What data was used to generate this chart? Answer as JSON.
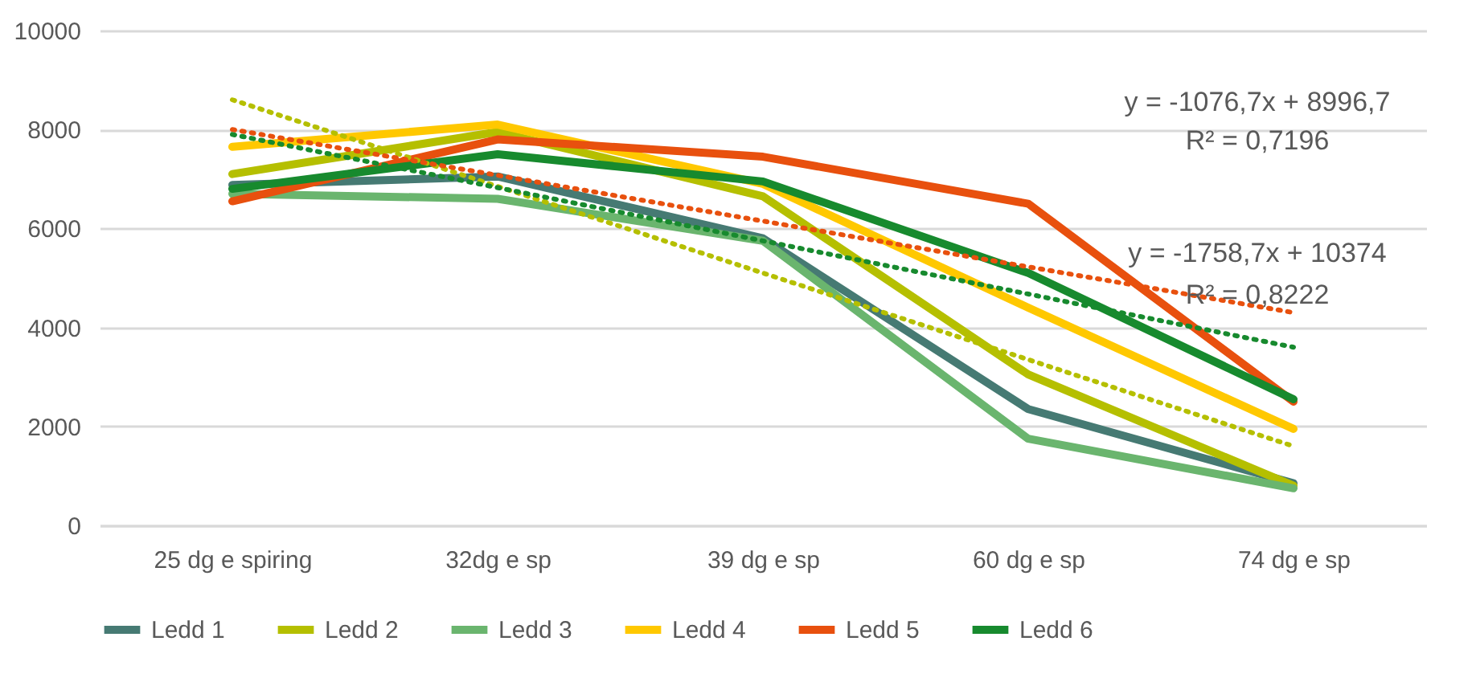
{
  "chart_data": {
    "type": "line",
    "categories": [
      "25 dg e spiring",
      "32dg e sp",
      "39 dg e sp",
      "60 dg e sp",
      "74 dg e sp"
    ],
    "series": [
      {
        "name": "Ledd 1",
        "color": "#467a73",
        "values": [
          6880,
          7050,
          5800,
          2350,
          850
        ]
      },
      {
        "name": "Ledd 2",
        "color": "#b5bf00",
        "values": [
          7100,
          7950,
          6650,
          3050,
          800
        ]
      },
      {
        "name": "Ledd 3",
        "color": "#6ab56e",
        "values": [
          6700,
          6600,
          5750,
          1750,
          750
        ]
      },
      {
        "name": "Ledd 4",
        "color": "#ffc800",
        "values": [
          7650,
          8100,
          6900,
          4400,
          1950
        ]
      },
      {
        "name": "Ledd 5",
        "color": "#e8500e",
        "values": [
          6550,
          7800,
          7450,
          6500,
          2500
        ]
      },
      {
        "name": "Ledd 6",
        "color": "#178a2e",
        "values": [
          6800,
          7500,
          6950,
          5100,
          2550
        ]
      },
      {
        "type": "line",
        "line_style": "dotted",
        "color": "#b5bf00",
        "x": [
          "25 dg e spiring",
          "74 dg e sp"
        ],
        "values": [
          8600,
          1600
        ]
      },
      {
        "type": "line",
        "line_style": "dotted",
        "color": "#e8500e",
        "x": [
          "25 dg e spiring",
          "74 dg e sp"
        ],
        "values": [
          8000,
          4300
        ]
      },
      {
        "type": "line",
        "line_style": "dotted",
        "color": "#178a2e",
        "x": [
          "25 dg e spiring",
          "74 dg e sp"
        ],
        "values": [
          7900,
          3600
        ]
      }
    ],
    "ylim": [
      0,
      10000
    ],
    "yticks": [
      0,
      2000,
      4000,
      6000,
      8000,
      10000
    ],
    "grid": "y",
    "legend": "bottom",
    "line_style": "solid",
    "annotations": [
      "y = -1076,7x + 8996,7",
      "R² = 0,7196",
      "y = -1758,7x + 10374",
      "R² = 0,8222"
    ]
  }
}
